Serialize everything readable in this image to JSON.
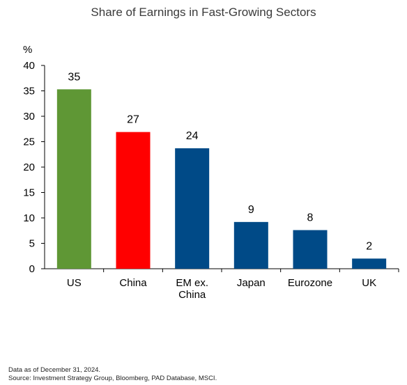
{
  "chart_data": {
    "type": "bar",
    "title": "Share of Earnings in Fast-Growing Sectors",
    "ylabel": "%",
    "xlabel": "",
    "ylim": [
      0,
      40
    ],
    "yticks": [
      0,
      5,
      10,
      15,
      20,
      25,
      30,
      35,
      40
    ],
    "categories": [
      "US",
      "China",
      "EM ex. China",
      "Japan",
      "Eurozone",
      "UK"
    ],
    "category_label_lines": [
      [
        "US"
      ],
      [
        "China"
      ],
      [
        "EM ex.",
        "China"
      ],
      [
        "Japan"
      ],
      [
        "Eurozone"
      ],
      [
        "UK"
      ]
    ],
    "values": [
      35.3,
      26.9,
      23.7,
      9.2,
      7.6,
      2.0
    ],
    "data_labels": [
      "35",
      "27",
      "24",
      "9",
      "8",
      "2"
    ],
    "bar_colors": [
      "#5f9735",
      "#ff0000",
      "#004a87",
      "#004a87",
      "#004a87",
      "#004a87"
    ],
    "grid": false,
    "legend": "none"
  },
  "footnotes": {
    "line1": "Data as of December 31, 2024.",
    "line2": "Source: Investment Strategy Group, Bloomberg, PAD Database, MSCI."
  }
}
